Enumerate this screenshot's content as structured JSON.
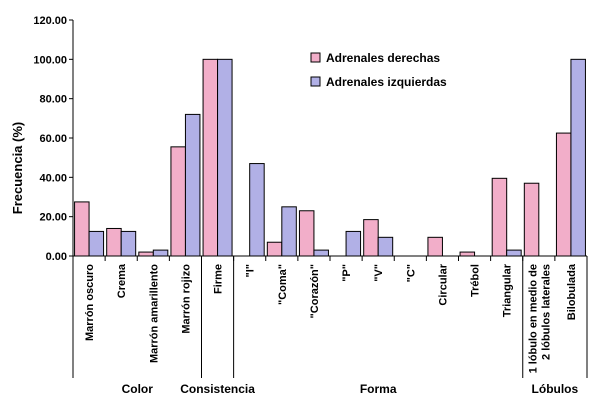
{
  "chart_data": {
    "type": "bar",
    "ylabel": "Frecuencia (%)",
    "xlabel": "",
    "ylim": [
      0,
      120
    ],
    "yticks": [
      "0.00",
      "20.00",
      "40.00",
      "60.00",
      "80.00",
      "100.00",
      "120.00"
    ],
    "legend_position": "top-right",
    "categories": [
      "Marrón oscuro",
      "Crema",
      "Marrón amarillento",
      "Marrón rojizo",
      "Firme",
      "\"I\"",
      "\"Coma\"",
      "\"Corazón\"",
      "\"P\"",
      "\"V\"",
      "\"C\"",
      "Circular",
      "Trébol",
      "Triangular",
      "1 lóbulo en medio de 2 lóbulos laterales",
      "Bilobulada"
    ],
    "category_lines": [
      [
        "Marrón oscuro"
      ],
      [
        "Crema"
      ],
      [
        "Marrón amarillento"
      ],
      [
        "Marrón rojizo"
      ],
      [
        "Firme"
      ],
      [
        "\"I\""
      ],
      [
        "\"Coma\""
      ],
      [
        "\"Corazón\""
      ],
      [
        "\"P\""
      ],
      [
        "\"V\""
      ],
      [
        "\"C\""
      ],
      [
        "Circular"
      ],
      [
        "Trébol"
      ],
      [
        "Triangular"
      ],
      [
        "1 lóbulo en medio de",
        "2 lóbulos laterales"
      ],
      [
        "Bilobulada"
      ]
    ],
    "groups": [
      {
        "label": "Color",
        "start": 0,
        "end": 3
      },
      {
        "label": "Consistencia",
        "start": 4,
        "end": 4
      },
      {
        "label": "Forma",
        "start": 5,
        "end": 13
      },
      {
        "label": "Lóbulos",
        "start": 14,
        "end": 15
      }
    ],
    "series": [
      {
        "name": "Adrenales derechas",
        "color": "#f2aec9",
        "values": [
          27.5,
          14.0,
          2.0,
          55.5,
          100.0,
          0,
          7.0,
          23.0,
          0,
          18.5,
          0,
          9.5,
          2.0,
          39.5,
          37.0,
          62.5
        ]
      },
      {
        "name": "Adrenales izquierdas",
        "color": "#b1b0e6",
        "values": [
          12.5,
          12.5,
          3.0,
          72.0,
          100.0,
          47.0,
          25.0,
          3.0,
          12.5,
          9.5,
          0,
          0,
          0,
          3.0,
          0,
          100.0
        ]
      }
    ]
  }
}
